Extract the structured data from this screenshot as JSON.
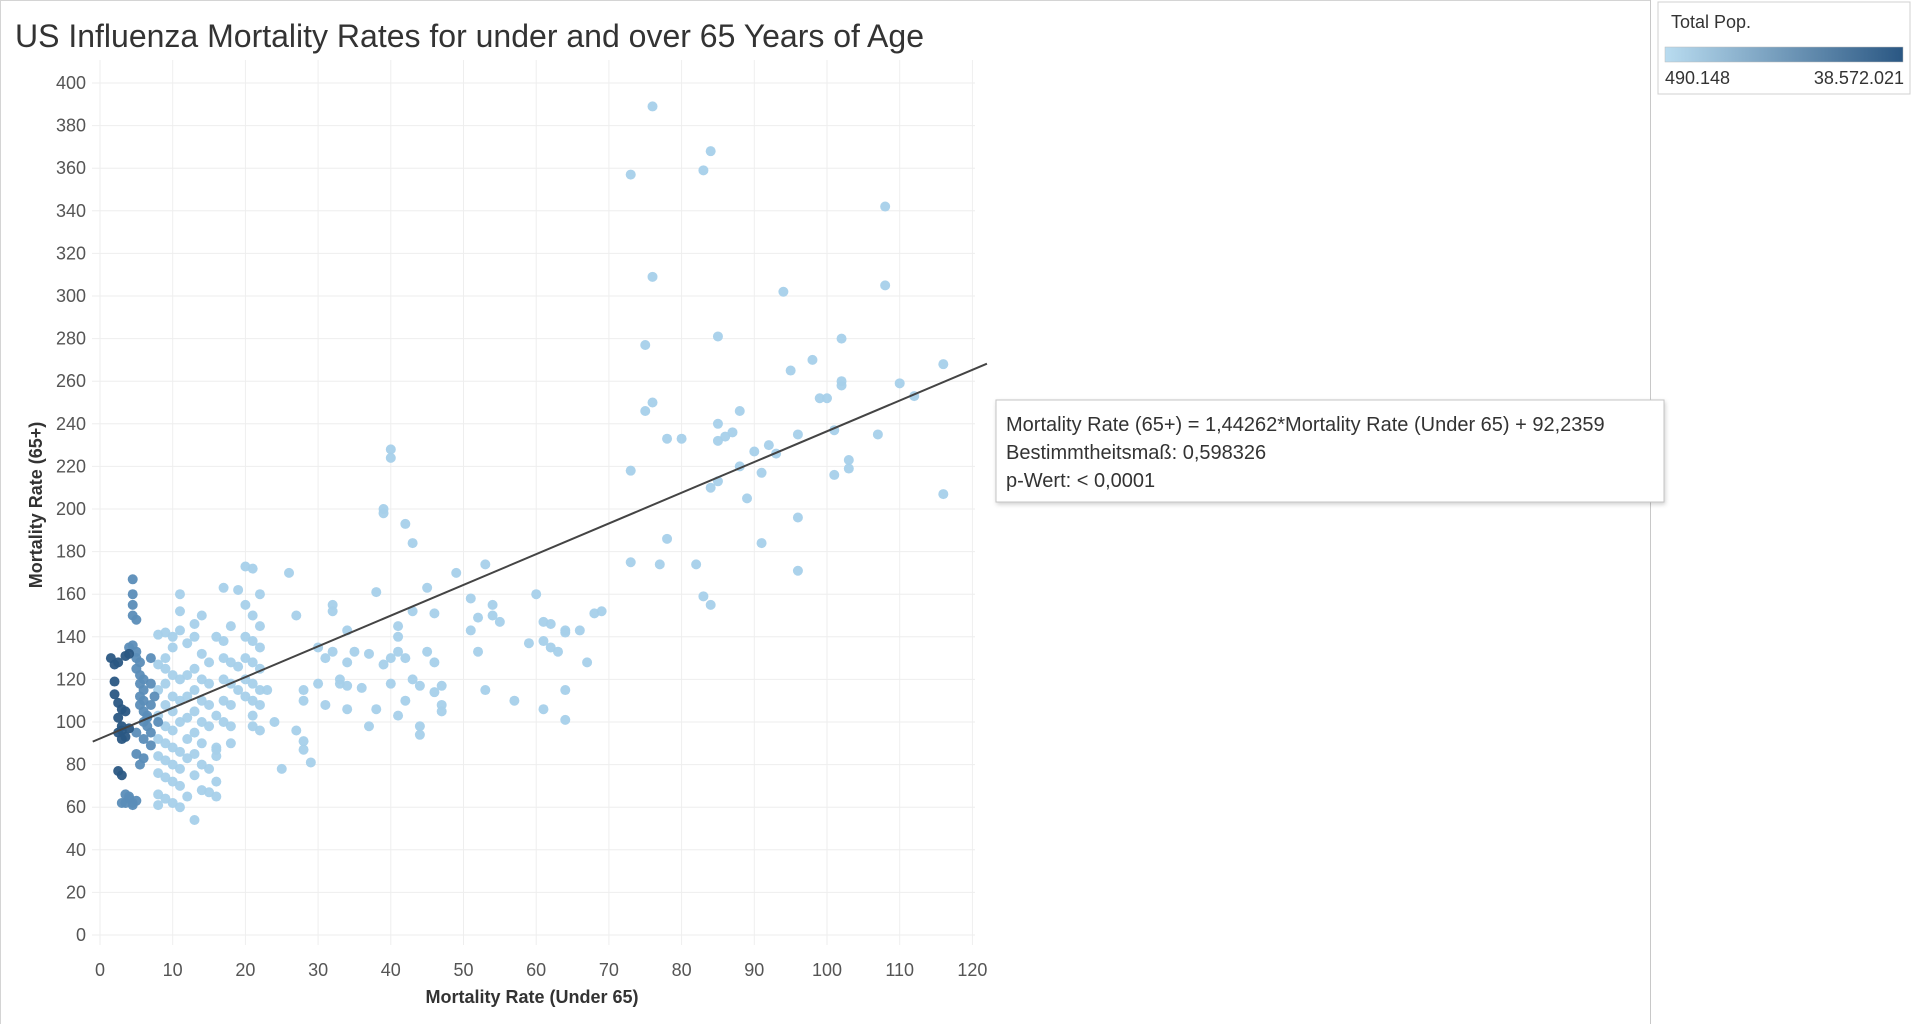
{
  "chart_data": {
    "type": "scatter",
    "title": "US Influenza Mortality Rates for under and over 65 Years of Age",
    "xlabel": "Mortality Rate (Under 65)",
    "ylabel": "Mortality Rate (65+)",
    "xlim": [
      -2,
      123
    ],
    "ylim": [
      0,
      400
    ],
    "xticks": [
      "0",
      "10",
      "20",
      "30",
      "40",
      "50",
      "60",
      "70",
      "80",
      "90",
      "100",
      "110",
      "120"
    ],
    "yticks": [
      "0",
      "20",
      "40",
      "60",
      "80",
      "100",
      "120",
      "140",
      "160",
      "180",
      "200",
      "220",
      "240",
      "260",
      "280",
      "300",
      "320",
      "340",
      "360",
      "380",
      "400"
    ],
    "grid": true,
    "legend": {
      "title": "Total Pop.",
      "min_label": "490.148",
      "max_label": "38.572.021",
      "color_low": "#b9dcf0",
      "color_high": "#2a5783",
      "placement": "top-right"
    },
    "trend_line": {
      "slope": 1.44262,
      "intercept": 92.2359,
      "x_range": [
        -1,
        122
      ],
      "color": "#444444"
    },
    "trend_tooltip": {
      "line1": "Mortality Rate (65+) = 1,44262*Mortality Rate (Under 65) + 92,2359",
      "line2": "Bestimmtheitsmaß: 0,598326",
      "line3": "p-Wert: < 0,0001"
    },
    "points_dark": [
      [
        1.5,
        130
      ],
      [
        2,
        127
      ],
      [
        2.5,
        128
      ],
      [
        2,
        119
      ],
      [
        2,
        113
      ],
      [
        2.5,
        109
      ],
      [
        3,
        106
      ],
      [
        2.5,
        102
      ],
      [
        3,
        98
      ],
      [
        2.5,
        95
      ],
      [
        3.5,
        93
      ],
      [
        2.5,
        77
      ],
      [
        3,
        75
      ],
      [
        3.5,
        105
      ],
      [
        3.5,
        131
      ],
      [
        4,
        132
      ],
      [
        3,
        96
      ],
      [
        3,
        92
      ],
      [
        4,
        97
      ]
    ],
    "points_mid": [
      [
        4.5,
        167
      ],
      [
        4.5,
        160
      ],
      [
        4.5,
        155
      ],
      [
        4.5,
        150
      ],
      [
        5,
        148
      ],
      [
        4,
        135
      ],
      [
        4.5,
        136
      ],
      [
        5,
        133
      ],
      [
        5,
        130
      ],
      [
        5.5,
        128
      ],
      [
        5,
        125
      ],
      [
        5.5,
        122
      ],
      [
        6,
        120
      ],
      [
        5.5,
        118
      ],
      [
        6,
        115
      ],
      [
        5.5,
        112
      ],
      [
        6,
        110
      ],
      [
        5.5,
        108
      ],
      [
        6,
        105
      ],
      [
        6.5,
        102
      ],
      [
        6,
        100
      ],
      [
        6.5,
        98
      ],
      [
        5,
        95
      ],
      [
        6,
        92
      ],
      [
        7,
        95
      ],
      [
        5,
        85
      ],
      [
        6,
        83
      ],
      [
        5.5,
        80
      ],
      [
        3.5,
        66
      ],
      [
        4,
        64
      ],
      [
        3.5,
        62
      ],
      [
        4.5,
        62
      ],
      [
        3,
        62
      ],
      [
        4.5,
        61
      ],
      [
        5,
        63
      ],
      [
        4,
        65
      ],
      [
        7,
        130
      ],
      [
        7,
        118
      ],
      [
        7.5,
        112
      ],
      [
        7,
        108
      ],
      [
        6.5,
        103
      ],
      [
        8,
        100
      ],
      [
        7,
        89
      ]
    ],
    "points_light": [
      [
        8,
        141
      ],
      [
        9,
        142
      ],
      [
        10,
        140
      ],
      [
        11,
        143
      ],
      [
        10,
        135
      ],
      [
        9,
        130
      ],
      [
        8,
        127
      ],
      [
        9,
        125
      ],
      [
        10,
        122
      ],
      [
        11,
        120
      ],
      [
        9,
        118
      ],
      [
        8,
        115
      ],
      [
        10,
        112
      ],
      [
        11,
        110
      ],
      [
        9,
        108
      ],
      [
        10,
        105
      ],
      [
        8,
        103
      ],
      [
        11,
        100
      ],
      [
        9,
        98
      ],
      [
        10,
        96
      ],
      [
        8,
        92
      ],
      [
        9,
        90
      ],
      [
        10,
        88
      ],
      [
        11,
        86
      ],
      [
        8,
        84
      ],
      [
        9,
        82
      ],
      [
        10,
        80
      ],
      [
        11,
        78
      ],
      [
        8,
        76
      ],
      [
        9,
        74
      ],
      [
        10,
        72
      ],
      [
        11,
        70
      ],
      [
        8,
        66
      ],
      [
        9,
        64
      ],
      [
        10,
        62
      ],
      [
        11,
        60
      ],
      [
        8,
        61
      ],
      [
        12,
        65
      ],
      [
        11,
        152
      ],
      [
        11,
        160
      ],
      [
        13,
        146
      ],
      [
        14,
        150
      ],
      [
        13,
        140
      ],
      [
        12,
        137
      ],
      [
        14,
        132
      ],
      [
        15,
        128
      ],
      [
        13,
        125
      ],
      [
        12,
        122
      ],
      [
        14,
        120
      ],
      [
        15,
        118
      ],
      [
        13,
        115
      ],
      [
        12,
        112
      ],
      [
        14,
        110
      ],
      [
        15,
        108
      ],
      [
        13,
        105
      ],
      [
        12,
        102
      ],
      [
        14,
        100
      ],
      [
        15,
        98
      ],
      [
        13,
        95
      ],
      [
        12,
        92
      ],
      [
        14,
        90
      ],
      [
        16,
        88
      ],
      [
        13,
        85
      ],
      [
        12,
        83
      ],
      [
        14,
        80
      ],
      [
        15,
        78
      ],
      [
        13,
        75
      ],
      [
        16,
        72
      ],
      [
        14,
        68
      ],
      [
        15,
        67
      ],
      [
        13,
        54
      ],
      [
        16,
        65
      ],
      [
        16,
        140
      ],
      [
        17,
        138
      ],
      [
        18,
        145
      ],
      [
        17,
        130
      ],
      [
        18,
        128
      ],
      [
        19,
        126
      ],
      [
        17,
        120
      ],
      [
        18,
        118
      ],
      [
        19,
        115
      ],
      [
        17,
        110
      ],
      [
        18,
        108
      ],
      [
        16,
        103
      ],
      [
        17,
        100
      ],
      [
        18,
        98
      ],
      [
        16,
        84
      ],
      [
        16,
        87
      ],
      [
        17,
        163
      ],
      [
        19,
        162
      ],
      [
        20,
        155
      ],
      [
        21,
        150
      ],
      [
        20,
        140
      ],
      [
        21,
        138
      ],
      [
        22,
        135
      ],
      [
        20,
        130
      ],
      [
        21,
        128
      ],
      [
        22,
        125
      ],
      [
        20,
        120
      ],
      [
        21,
        118
      ],
      [
        22,
        115
      ],
      [
        20,
        112
      ],
      [
        21,
        110
      ],
      [
        22,
        108
      ],
      [
        21,
        103
      ],
      [
        22,
        96
      ],
      [
        20,
        173
      ],
      [
        21,
        172
      ],
      [
        22,
        160
      ],
      [
        22,
        145
      ],
      [
        21,
        98
      ],
      [
        18,
        90
      ],
      [
        23,
        115
      ],
      [
        24,
        100
      ],
      [
        25,
        78
      ],
      [
        26,
        170
      ],
      [
        27,
        96
      ],
      [
        27,
        150
      ],
      [
        28,
        115
      ],
      [
        28,
        110
      ],
      [
        28,
        91
      ],
      [
        28,
        87
      ],
      [
        29,
        81
      ],
      [
        30,
        135
      ],
      [
        30,
        118
      ],
      [
        31,
        130
      ],
      [
        31,
        108
      ],
      [
        32,
        155
      ],
      [
        32,
        152
      ],
      [
        32,
        133
      ],
      [
        33,
        118
      ],
      [
        33,
        120
      ],
      [
        34,
        143
      ],
      [
        34,
        128
      ],
      [
        34,
        117
      ],
      [
        34,
        106
      ],
      [
        35,
        133
      ],
      [
        36,
        116
      ],
      [
        37,
        98
      ],
      [
        37,
        132
      ],
      [
        38,
        161
      ],
      [
        38,
        106
      ],
      [
        39,
        127
      ],
      [
        39,
        198
      ],
      [
        39,
        200
      ],
      [
        40,
        228
      ],
      [
        40,
        224
      ],
      [
        40,
        130
      ],
      [
        40,
        118
      ],
      [
        41,
        145
      ],
      [
        41,
        140
      ],
      [
        41,
        133
      ],
      [
        41,
        103
      ],
      [
        42,
        193
      ],
      [
        42,
        130
      ],
      [
        42,
        110
      ],
      [
        43,
        152
      ],
      [
        43,
        120
      ],
      [
        43,
        184
      ],
      [
        44,
        117
      ],
      [
        44,
        98
      ],
      [
        44,
        94
      ],
      [
        45,
        133
      ],
      [
        45,
        163
      ],
      [
        46,
        151
      ],
      [
        46,
        128
      ],
      [
        46,
        114
      ],
      [
        47,
        117
      ],
      [
        47,
        108
      ],
      [
        47,
        105
      ],
      [
        49,
        170
      ],
      [
        51,
        158
      ],
      [
        51,
        143
      ],
      [
        52,
        149
      ],
      [
        52,
        133
      ],
      [
        53,
        115
      ],
      [
        53,
        174
      ],
      [
        54,
        155
      ],
      [
        54,
        150
      ],
      [
        55,
        147
      ],
      [
        57,
        110
      ],
      [
        59,
        137
      ],
      [
        60,
        160
      ],
      [
        61,
        138
      ],
      [
        61,
        147
      ],
      [
        61,
        106
      ],
      [
        62,
        146
      ],
      [
        62,
        135
      ],
      [
        63,
        133
      ],
      [
        64,
        143
      ],
      [
        64,
        115
      ],
      [
        64,
        101
      ],
      [
        64,
        142
      ],
      [
        66,
        143
      ],
      [
        67,
        128
      ],
      [
        68,
        151
      ],
      [
        69,
        152
      ],
      [
        73,
        218
      ],
      [
        73,
        175
      ],
      [
        73,
        357
      ],
      [
        75,
        277
      ],
      [
        75,
        246
      ],
      [
        76,
        309
      ],
      [
        76,
        250
      ],
      [
        76,
        389
      ],
      [
        77,
        174
      ],
      [
        78,
        186
      ],
      [
        78,
        233
      ],
      [
        80,
        233
      ],
      [
        82,
        174
      ],
      [
        83,
        359
      ],
      [
        83,
        159
      ],
      [
        84,
        155
      ],
      [
        84,
        368
      ],
      [
        84,
        210
      ],
      [
        85,
        232
      ],
      [
        85,
        240
      ],
      [
        85,
        281
      ],
      [
        85,
        213
      ],
      [
        86,
        234
      ],
      [
        87,
        236
      ],
      [
        88,
        246
      ],
      [
        88,
        220
      ],
      [
        89,
        205
      ],
      [
        90,
        227
      ],
      [
        91,
        217
      ],
      [
        91,
        184
      ],
      [
        92,
        230
      ],
      [
        93,
        226
      ],
      [
        94,
        302
      ],
      [
        95,
        265
      ],
      [
        96,
        235
      ],
      [
        96,
        196
      ],
      [
        96,
        171
      ],
      [
        98,
        270
      ],
      [
        99,
        252
      ],
      [
        100,
        252
      ],
      [
        101,
        237
      ],
      [
        101,
        216
      ],
      [
        102,
        280
      ],
      [
        102,
        260
      ],
      [
        102,
        258
      ],
      [
        103,
        223
      ],
      [
        103,
        219
      ],
      [
        107,
        235
      ],
      [
        108,
        342
      ],
      [
        108,
        305
      ],
      [
        110,
        259
      ],
      [
        112,
        253
      ],
      [
        116,
        268
      ],
      [
        116,
        207
      ]
    ]
  }
}
